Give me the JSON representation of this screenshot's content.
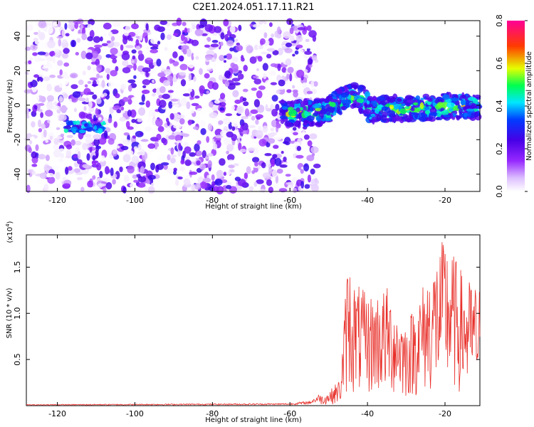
{
  "title": "C2E1.2024.051.17.11.R21",
  "chart_data": [
    {
      "type": "heatmap",
      "xlabel": "Height of straight line (km)",
      "ylabel": "Frequency (Hz)",
      "xlim": [
        -128,
        -11
      ],
      "ylim": [
        -50,
        49
      ],
      "xticks": [
        -120,
        -100,
        -80,
        -60,
        -40,
        -20
      ],
      "yticks": [
        -40,
        -20,
        0,
        20,
        40
      ],
      "colorbar": {
        "label": "Normalized spectral amplitude",
        "range": [
          0,
          0.8
        ],
        "ticks": [
          "0.0",
          "0.2",
          "0.4",
          "0.6",
          "0.8"
        ],
        "colors": [
          "#ffffff",
          "#9b30ff",
          "#0000ff",
          "#00ffff",
          "#00ff00",
          "#ffff00",
          "#ff0000",
          "#ff00ff"
        ]
      },
      "features": [
        {
          "name": "noise",
          "x_range": [
            -128,
            -55
          ],
          "y_range": [
            -50,
            49
          ],
          "amplitude": 0.12
        },
        {
          "name": "echo-left",
          "x_range": [
            -118,
            -108
          ],
          "y_center": -13,
          "amplitude": 0.35
        },
        {
          "name": "echo-trace",
          "x_range": [
            -60,
            -11
          ],
          "y_center_start": -5,
          "y_center_end": 0,
          "amplitude": 0.7
        }
      ]
    },
    {
      "type": "line",
      "xlabel": "Height of straight line (km)",
      "ylabel": "SNR (10 * v/v)",
      "yexponent": "(x10",
      "yexponent_power": "4",
      "exponent_close": ")",
      "xlim": [
        -128,
        -11
      ],
      "ylim": [
        0,
        1.85
      ],
      "xticks": [
        -120,
        -100,
        -80,
        -60,
        -40,
        -20
      ],
      "yticks": [
        "0.5",
        "1.0",
        "1.5"
      ],
      "color": "#e8302a",
      "profile": [
        {
          "x": -128,
          "y": 0.01
        },
        {
          "x": -60,
          "y": 0.02
        },
        {
          "x": -55,
          "y": 0.04
        },
        {
          "x": -50,
          "y": 0.15
        },
        {
          "x": -47,
          "y": 0.3
        },
        {
          "x": -45,
          "y": 1.7
        },
        {
          "x": -44,
          "y": 1.4
        },
        {
          "x": -40,
          "y": 1.2
        },
        {
          "x": -35,
          "y": 1.3
        },
        {
          "x": -30,
          "y": 0.9
        },
        {
          "x": -25,
          "y": 1.4
        },
        {
          "x": -20,
          "y": 1.85
        },
        {
          "x": -15,
          "y": 1.4
        },
        {
          "x": -11,
          "y": 1.3
        }
      ]
    }
  ]
}
